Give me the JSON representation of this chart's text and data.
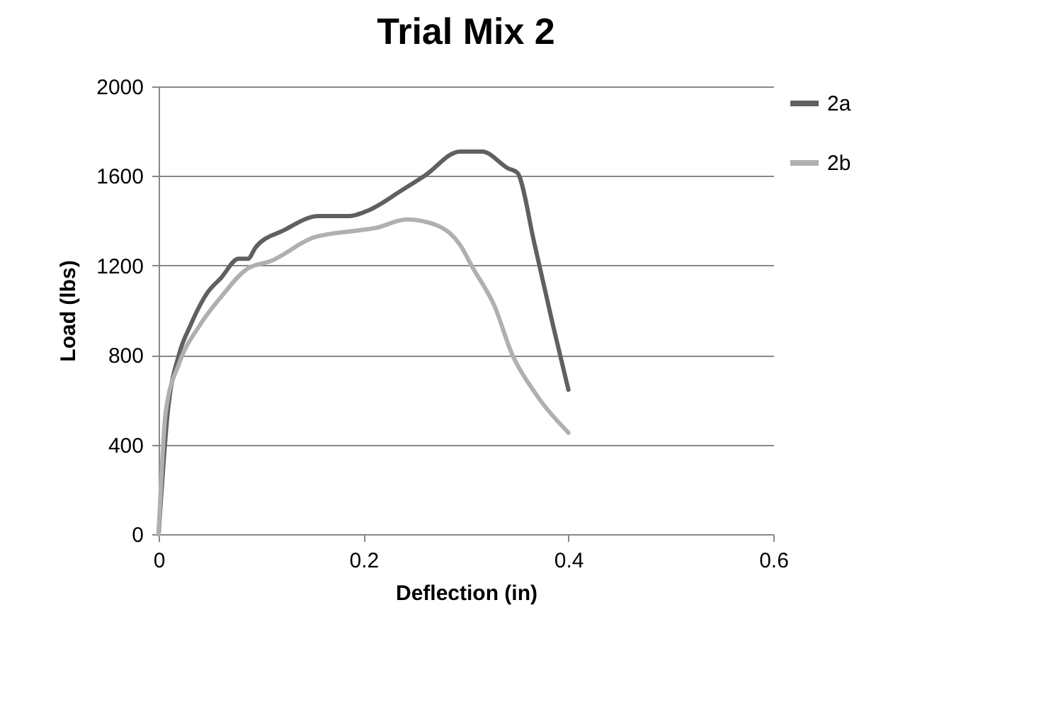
{
  "chart_data": {
    "type": "line",
    "title": "Trial Mix 2",
    "xlabel": "Deflection (in)",
    "ylabel": "Load (lbs)",
    "xlim": [
      0,
      0.6
    ],
    "xticks": [
      {
        "value": 0,
        "label": "0"
      },
      0.2,
      0.4,
      0.6
    ],
    "ylim": [
      0,
      2000
    ],
    "yticks": [
      0,
      400,
      800,
      {
        "value": 1200,
        "label": "1200"
      },
      {
        "value": 1600,
        "label": "1600"
      },
      {
        "value": 2000,
        "label": "2000"
      }
    ],
    "grid": "y",
    "legend": "right",
    "marker": "none",
    "line_style": "solid",
    "series": [
      {
        "name": "2a",
        "color": "#606060",
        "x": [
          0,
          0.009,
          0.02,
          0.031,
          0.048,
          0.061,
          0.078,
          0.087,
          0.095,
          0.122,
          0.156,
          0.186,
          0.203,
          0.238,
          0.26,
          0.294,
          0.316,
          0.341,
          0.35,
          0.367,
          0.385,
          0.4
        ],
        "values": [
          0,
          549,
          804,
          932,
          1081,
          1145,
          1230,
          1230,
          1283,
          1357,
          1421,
          1421,
          1443,
          1538,
          1602,
          1709,
          1709,
          1634,
          1615,
          1294,
          932,
          645
        ]
      },
      {
        "name": "2b",
        "color": "#b0b0b0",
        "x": [
          0,
          0.007,
          0.02,
          0.04,
          0.061,
          0.087,
          0.109,
          0.152,
          0.195,
          0.212,
          0.242,
          0.272,
          0.294,
          0.307,
          0.328,
          0.345,
          0.367,
          0.4
        ],
        "values": [
          0,
          549,
          762,
          932,
          1060,
          1187,
          1219,
          1326,
          1357,
          1368,
          1406,
          1379,
          1294,
          1187,
          1017,
          804,
          634,
          453
        ]
      }
    ]
  }
}
